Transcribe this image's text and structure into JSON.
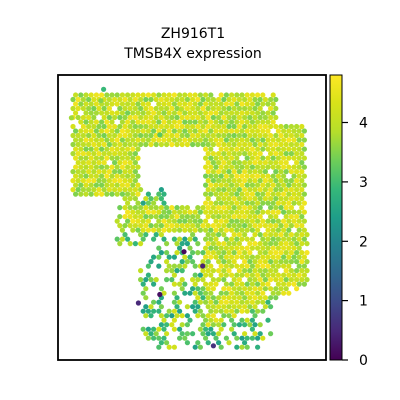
{
  "chart_data": {
    "type": "scatter",
    "title_lines": [
      "ZH916T1",
      "TMSB4X expression"
    ],
    "xlabel": "",
    "ylabel": "",
    "grid": false,
    "legend": "colorbar-right",
    "colormap": "viridis",
    "colorbar": {
      "range": [
        0,
        4.8
      ],
      "ticks": [
        0,
        1,
        2,
        3,
        4
      ],
      "tick_labels": [
        "0",
        "1",
        "2",
        "3",
        "4"
      ]
    },
    "points_description": "Hexagonal spatial spots; expression mostly 3.5–4.5 in dense tissue region, 2.5–4 in sparse lower region, a few near 0–1.",
    "outlier_points": [
      {
        "x": 0.47,
        "y": 0.62,
        "value": 0.1
      },
      {
        "x": 0.54,
        "y": 0.67,
        "value": 0.4
      },
      {
        "x": 0.38,
        "y": 0.77,
        "value": 0.2
      },
      {
        "x": 0.58,
        "y": 0.95,
        "value": 0.6
      },
      {
        "x": 0.3,
        "y": 0.8,
        "value": 0.5
      }
    ]
  }
}
